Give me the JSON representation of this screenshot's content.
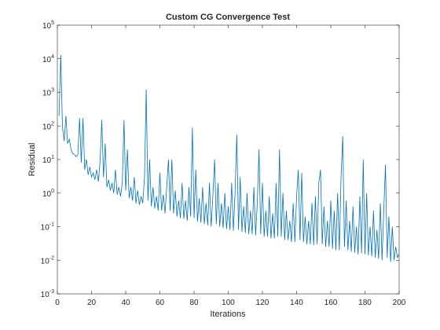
{
  "chart_data": {
    "type": "line",
    "title": "Custom CG Convergence Test",
    "xlabel": "Iterations",
    "ylabel": "Residual",
    "color": "#0072bd",
    "yscale": "log",
    "xlim": [
      0,
      200
    ],
    "xticks": [
      0,
      20,
      40,
      60,
      80,
      100,
      120,
      140,
      160,
      180,
      200
    ],
    "ylim": [
      0.001,
      100000
    ],
    "yticks": [
      {
        "value": 0.001,
        "label": "10^-3"
      },
      {
        "value": 0.01,
        "label": "10^-2"
      },
      {
        "value": 0.1,
        "label": "10^-1"
      },
      {
        "value": 1,
        "label": "10^0"
      },
      {
        "value": 10,
        "label": "10^1"
      },
      {
        "value": 100,
        "label": "10^2"
      },
      {
        "value": 1000,
        "label": "10^3"
      },
      {
        "value": 10000,
        "label": "10^4"
      },
      {
        "value": 100000,
        "label": "10^5"
      }
    ],
    "x": [
      1,
      2,
      3,
      4,
      5,
      6,
      7,
      8,
      9,
      10,
      11,
      12,
      13,
      14,
      15,
      16,
      17,
      18,
      19,
      20,
      21,
      22,
      23,
      24,
      25,
      26,
      27,
      28,
      29,
      30,
      31,
      32,
      33,
      34,
      35,
      36,
      37,
      38,
      39,
      40,
      41,
      42,
      43,
      44,
      45,
      46,
      47,
      48,
      49,
      50,
      51,
      52,
      53,
      54,
      55,
      56,
      57,
      58,
      59,
      60,
      61,
      62,
      63,
      64,
      65,
      66,
      67,
      68,
      69,
      70,
      71,
      72,
      73,
      74,
      75,
      76,
      77,
      78,
      79,
      80,
      81,
      82,
      83,
      84,
      85,
      86,
      87,
      88,
      89,
      90,
      91,
      92,
      93,
      94,
      95,
      96,
      97,
      98,
      99,
      100,
      101,
      102,
      103,
      104,
      105,
      106,
      107,
      108,
      109,
      110,
      111,
      112,
      113,
      114,
      115,
      116,
      117,
      118,
      119,
      120,
      121,
      122,
      123,
      124,
      125,
      126,
      127,
      128,
      129,
      130,
      131,
      132,
      133,
      134,
      135,
      136,
      137,
      138,
      139,
      140,
      141,
      142,
      143,
      144,
      145,
      146,
      147,
      148,
      149,
      150,
      151,
      152,
      153,
      154,
      155,
      156,
      157,
      158,
      159,
      160,
      161,
      162,
      163,
      164,
      165,
      166,
      167,
      168,
      169,
      170,
      171,
      172,
      173,
      174,
      175,
      176,
      177,
      178,
      179,
      180,
      181,
      182,
      183,
      184,
      185,
      186,
      187,
      188,
      189,
      190,
      191,
      192,
      193,
      194,
      195,
      196,
      197,
      198,
      199,
      200
    ],
    "values": [
      200,
      13000,
      90,
      35,
      200,
      30,
      40,
      20,
      15,
      14,
      12,
      14,
      170,
      8,
      170,
      5,
      10,
      3.5,
      6,
      3,
      4,
      2.5,
      5,
      2.2,
      9,
      150,
      3,
      30,
      1.5,
      2.5,
      1.2,
      2,
      1,
      5,
      0.9,
      1.5,
      0.8,
      2,
      150,
      1.2,
      20,
      0.7,
      1.5,
      0.6,
      3,
      0.5,
      1.2,
      0.45,
      0.8,
      0.5,
      3,
      1200,
      0.6,
      10,
      0.4,
      1.5,
      0.35,
      0.8,
      0.3,
      4,
      0.3,
      0.9,
      0.25,
      1.5,
      10,
      0.3,
      10,
      0.25,
      1.2,
      0.2,
      0.6,
      0.18,
      2,
      0.17,
      0.6,
      0.15,
      1.5,
      0.2,
      90,
      0.18,
      5,
      0.14,
      0.7,
      0.13,
      1.5,
      0.12,
      0.5,
      0.11,
      2,
      0.1,
      0.8,
      10,
      0.12,
      2,
      0.1,
      0.5,
      0.09,
      1,
      0.085,
      0.4,
      0.08,
      2,
      0.075,
      1,
      55,
      0.08,
      3,
      0.07,
      0.4,
      0.065,
      1,
      0.06,
      0.3,
      0.06,
      1.5,
      0.055,
      0.5,
      20,
      0.06,
      2,
      0.05,
      0.3,
      0.05,
      0.8,
      0.045,
      0.25,
      0.045,
      2,
      0.05,
      20,
      0.05,
      1,
      0.04,
      0.3,
      0.04,
      0.15,
      0.035,
      0.5,
      0.035,
      0.8,
      5,
      0.04,
      4,
      0.035,
      0.2,
      0.03,
      0.15,
      0.03,
      0.5,
      0.028,
      0.8,
      0.03,
      2,
      5,
      0.03,
      0.4,
      0.025,
      0.15,
      0.025,
      0.6,
      0.022,
      0.3,
      0.02,
      1,
      0.02,
      3,
      50,
      0.025,
      0.6,
      0.02,
      0.15,
      0.018,
      0.4,
      0.017,
      0.1,
      0.015,
      0.8,
      0.016,
      10,
      0.015,
      1,
      0.014,
      0.1,
      0.013,
      0.3,
      0.012,
      0.08,
      0.011,
      0.5,
      0.01,
      0.3,
      7,
      0.012,
      0.2,
      0.009,
      0.1,
      0.01,
      0.025,
      0.012,
      0.015
    ]
  }
}
